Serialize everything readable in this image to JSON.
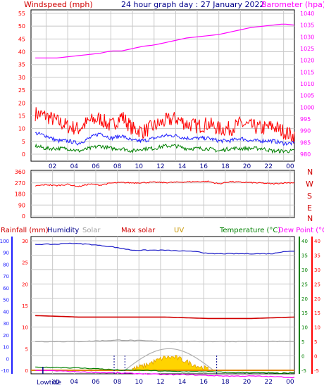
{
  "colors": {
    "wind_gust": "#ff0000",
    "wind_avg": "#2020ff",
    "wind_speed": "#008000",
    "barometer": "#ff00ff",
    "wind_dir": "#ff0000",
    "rain": "#2020ff",
    "humidity": "#1c1cc8",
    "solar": "#a0a0a0",
    "max_solar": "#d00000",
    "uv": "#ffd400",
    "temperature": "#008000",
    "dew_point": "#ff00ff",
    "grid": "#c8c8c8",
    "axis": "#000000",
    "tick_text": "#ff0000"
  },
  "header": {
    "windspeed_label": "Windspeed (mph)",
    "title": "24 hour graph day : 27 January 2022",
    "barometer_label": "Barometer (hpa)"
  },
  "legend2": {
    "rainfall": "Rainfall (mm)",
    "humidity": "Humidity",
    "solar": "Solar",
    "max_solar": "Max solar",
    "uv": "UV",
    "temperature": "Temperature (°C)",
    "dew_point": "Dew Point (°C)"
  },
  "compass": [
    "N",
    "W",
    "S",
    "E",
    "N"
  ],
  "footer": {
    "lowtide_label": "Lowtide",
    "lowtide_hour": "02"
  },
  "chart_data": [
    {
      "type": "line",
      "title": "24 hour graph day : 27 January 2022",
      "x_tick_labels": [
        "02",
        "04",
        "06",
        "08",
        "10",
        "12",
        "14",
        "16",
        "18",
        "20",
        "22",
        "00"
      ],
      "y_left_label": "Windspeed (mph)",
      "y_left_ticks": [
        0,
        5,
        10,
        15,
        20,
        25,
        30,
        35,
        40,
        45,
        50,
        55
      ],
      "y_right_label": "Barometer (hpa)",
      "y_right_ticks": [
        980,
        985,
        990,
        995,
        1000,
        1005,
        1010,
        1015,
        1020,
        1025,
        1030,
        1035,
        1040
      ],
      "series": [
        {
          "name": "Barometer",
          "axis": "right",
          "x": [
            0,
            2,
            3,
            4,
            5,
            6,
            7,
            8,
            9,
            10,
            11,
            12,
            13,
            14,
            15,
            16,
            17,
            18,
            19,
            20,
            21,
            22,
            23,
            24
          ],
          "y": [
            1021,
            1021,
            1021.5,
            1022,
            1022.5,
            1023,
            1024,
            1024,
            1025,
            1026,
            1026.5,
            1027.5,
            1028.5,
            1029.5,
            1030,
            1030.5,
            1031,
            1032,
            1033,
            1034,
            1034.5,
            1035,
            1035.5,
            1035
          ]
        },
        {
          "name": "Gust",
          "axis": "left",
          "x": [
            0,
            1,
            2,
            3,
            4,
            5,
            6,
            7,
            8,
            9,
            10,
            11,
            12,
            13,
            14,
            15,
            16,
            17,
            18,
            19,
            20,
            21,
            22,
            23,
            24
          ],
          "y": [
            15,
            14,
            12,
            10,
            9,
            12,
            13,
            10,
            14,
            9,
            8,
            10,
            12,
            13,
            11,
            10,
            11,
            9,
            9,
            11,
            10,
            9,
            10,
            8,
            6
          ]
        },
        {
          "name": "Average",
          "axis": "left",
          "x": [
            0,
            1,
            2,
            3,
            4,
            5,
            6,
            7,
            8,
            9,
            10,
            11,
            12,
            13,
            14,
            15,
            16,
            17,
            18,
            19,
            20,
            21,
            22,
            23,
            24
          ],
          "y": [
            8,
            7,
            5,
            5,
            4,
            6,
            8,
            6,
            7,
            5,
            5,
            6,
            7,
            7,
            6,
            6,
            6,
            5,
            5,
            6,
            5,
            5,
            5,
            4,
            4
          ]
        },
        {
          "name": "Speed",
          "axis": "left",
          "x": [
            0,
            1,
            2,
            3,
            4,
            5,
            6,
            7,
            8,
            9,
            10,
            11,
            12,
            13,
            14,
            15,
            16,
            17,
            18,
            19,
            20,
            21,
            22,
            23,
            24
          ],
          "y": [
            3,
            2,
            2,
            2,
            1,
            2,
            3,
            2,
            2,
            1,
            2,
            2,
            3,
            3,
            2,
            2,
            2,
            1,
            2,
            2,
            2,
            2,
            1,
            1,
            1
          ]
        }
      ]
    },
    {
      "type": "line",
      "y_ticks": [
        0,
        90,
        180,
        270,
        360
      ],
      "series": [
        {
          "name": "Wind direction",
          "x": [
            0,
            1,
            2,
            3,
            4,
            5,
            6,
            7,
            8,
            9,
            10,
            11,
            12,
            13,
            14,
            15,
            16,
            17,
            18,
            19,
            20,
            21,
            22,
            23,
            24
          ],
          "y": [
            245,
            255,
            248,
            258,
            240,
            260,
            252,
            268,
            272,
            270,
            272,
            275,
            272,
            275,
            278,
            280,
            282,
            262,
            280,
            275,
            272,
            268,
            262,
            270,
            272
          ]
        }
      ]
    },
    {
      "type": "line",
      "x_tick_labels": [
        "02",
        "04",
        "06",
        "08",
        "10",
        "12",
        "14",
        "16",
        "18",
        "20",
        "22",
        "00"
      ],
      "y_left_outer_ticks": [
        -10,
        0,
        10,
        20,
        30,
        40,
        50,
        60,
        70,
        80,
        90,
        100
      ],
      "y_left_inner_ticks": [
        0,
        5,
        10,
        15,
        20,
        25,
        30
      ],
      "y_right_inner_ticks": [
        -5,
        0,
        5,
        10,
        15,
        20,
        25,
        30,
        35,
        40
      ],
      "y_right_outer_ticks": [
        -5,
        0,
        5,
        10,
        15,
        20,
        25,
        30,
        35,
        40
      ],
      "series": [
        {
          "name": "Humidity",
          "axis": "left_outer",
          "x": [
            0,
            2,
            3,
            5,
            7,
            9,
            11,
            12,
            14,
            15,
            16,
            18,
            20,
            22,
            23,
            24
          ],
          "y": [
            97,
            97,
            98,
            97,
            95,
            92,
            92,
            92,
            91,
            91,
            89,
            89,
            89,
            89,
            91,
            91
          ]
        },
        {
          "name": "Max solar",
          "axis": "right",
          "x": [
            0,
            4,
            8,
            12,
            16,
            20,
            24
          ],
          "y": [
            14,
            13.5,
            13.5,
            13.5,
            13,
            13,
            13.5
          ]
        },
        {
          "name": "Solar",
          "axis": "right",
          "x": [
            0,
            4,
            8,
            12,
            14,
            16,
            20,
            24
          ],
          "y": [
            5,
            5,
            5.5,
            5,
            5,
            5,
            5,
            5
          ]
        },
        {
          "name": "Temperature",
          "axis": "right",
          "x": [
            0,
            2,
            4,
            6,
            8,
            10,
            12,
            14,
            16,
            18,
            20,
            22,
            24
          ],
          "y": [
            -4,
            -4,
            -4.2,
            -4.5,
            -5,
            -5,
            -5.3,
            -5.5,
            -5.5,
            -5.8,
            -5.8,
            -6,
            -6
          ]
        },
        {
          "name": "Dew Point",
          "axis": "right",
          "x": [
            0,
            2,
            4,
            6,
            8,
            10,
            12,
            14,
            16,
            18,
            20,
            22,
            24
          ],
          "y": [
            -5,
            -5.2,
            -5.5,
            -5.8,
            -6,
            -6.2,
            -6.5,
            -6.5,
            -6.8,
            -7,
            -7,
            -7.2,
            -7.5
          ]
        },
        {
          "name": "UV",
          "axis": "left_inner",
          "x": [
            9,
            10,
            11,
            12,
            13,
            14,
            15,
            16
          ],
          "y": [
            0.3,
            1,
            2,
            3,
            3,
            2,
            1,
            0.3
          ]
        }
      ]
    }
  ]
}
